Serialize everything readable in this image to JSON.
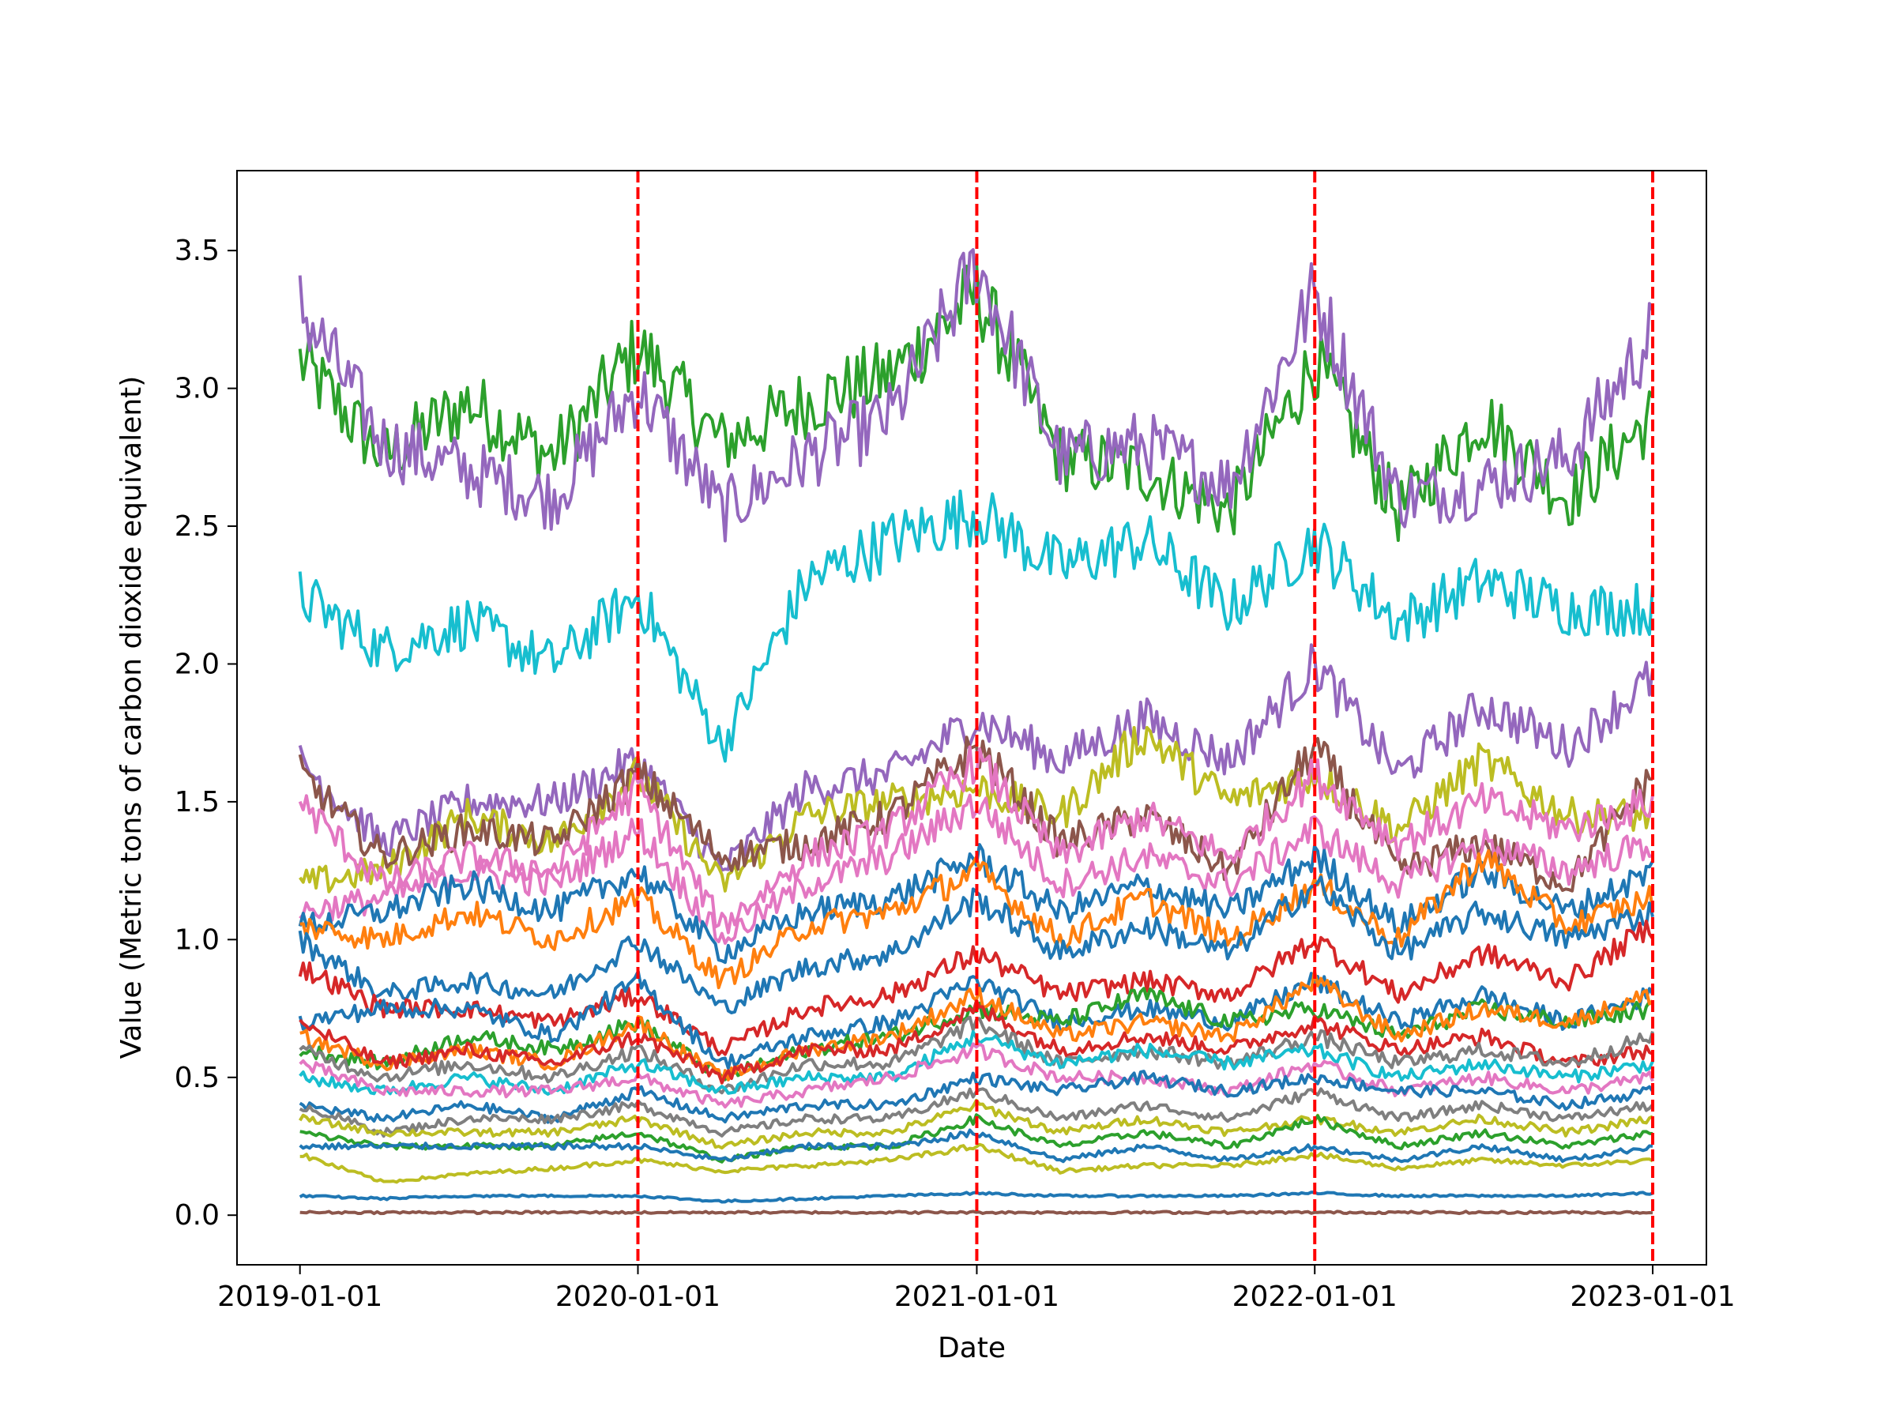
{
  "chart_data": {
    "type": "line",
    "title": "",
    "xlabel": "Date",
    "ylabel": "Value (Metric tons of carbon dioxide equivalent)",
    "x_ticks": [
      "2019-01-01",
      "2020-01-01",
      "2021-01-01",
      "2022-01-01",
      "2023-01-01"
    ],
    "y_ticks": [
      "0.0",
      "0.5",
      "1.0",
      "1.5",
      "2.0",
      "2.5",
      "3.0",
      "3.5"
    ],
    "xlim": [
      "2018-10-25",
      "2023-02-28"
    ],
    "ylim": [
      -0.18,
      3.79
    ],
    "grid": false,
    "legend": "none",
    "vertical_markers": {
      "dates": [
        "2020-01-01",
        "2021-01-01",
        "2022-01-01",
        "2023-01-01"
      ],
      "color": "#ff0000",
      "style": "dashed"
    },
    "x": [
      "2019-01-01",
      "2019-04-01",
      "2019-07-01",
      "2019-10-01",
      "2020-01-01",
      "2020-04-01",
      "2020-07-01",
      "2020-10-01",
      "2021-01-01",
      "2021-04-01",
      "2021-07-01",
      "2021-10-01",
      "2022-01-01",
      "2022-04-01",
      "2022-07-01",
      "2022-10-01",
      "2023-01-01"
    ],
    "series": [
      {
        "color": "#2ca02c",
        "values": [
          3.1,
          2.75,
          2.95,
          2.75,
          3.15,
          2.8,
          2.95,
          3.05,
          3.35,
          2.75,
          2.7,
          2.55,
          3.1,
          2.55,
          2.9,
          2.6,
          2.9
        ]
      },
      {
        "color": "#9467bd",
        "values": [
          3.3,
          2.8,
          2.7,
          2.6,
          3.0,
          2.55,
          2.75,
          2.9,
          3.45,
          2.75,
          2.8,
          2.65,
          3.35,
          2.6,
          2.65,
          2.75,
          3.2
        ]
      },
      {
        "color": "#17becf",
        "values": [
          2.25,
          2.05,
          2.15,
          2.0,
          2.25,
          1.7,
          2.3,
          2.45,
          2.55,
          2.35,
          2.45,
          2.2,
          2.45,
          2.15,
          2.3,
          2.2,
          2.2
        ]
      },
      {
        "color": "#9467bd",
        "values": [
          1.65,
          1.35,
          1.5,
          1.5,
          1.65,
          1.25,
          1.55,
          1.6,
          1.8,
          1.65,
          1.8,
          1.65,
          2.0,
          1.6,
          1.85,
          1.7,
          1.95
        ]
      },
      {
        "color": "#bcbd22",
        "values": [
          1.2,
          1.25,
          1.45,
          1.35,
          1.6,
          1.2,
          1.45,
          1.5,
          1.55,
          1.45,
          1.75,
          1.5,
          1.6,
          1.4,
          1.65,
          1.45,
          1.45
        ]
      },
      {
        "color": "#8c564b",
        "values": [
          1.6,
          1.3,
          1.4,
          1.35,
          1.6,
          1.3,
          1.35,
          1.45,
          1.7,
          1.35,
          1.45,
          1.25,
          1.7,
          1.25,
          1.35,
          1.2,
          1.6
        ]
      },
      {
        "color": "#e377c2",
        "values": [
          1.5,
          1.2,
          1.3,
          1.25,
          1.55,
          1.05,
          1.3,
          1.4,
          1.65,
          1.3,
          1.45,
          1.3,
          1.6,
          1.35,
          1.5,
          1.4,
          1.5
        ]
      },
      {
        "color": "#e377c2",
        "values": [
          1.1,
          1.15,
          1.25,
          1.2,
          1.4,
          1.0,
          1.2,
          1.3,
          1.5,
          1.2,
          1.3,
          1.2,
          1.4,
          1.2,
          1.35,
          1.25,
          1.35
        ]
      },
      {
        "color": "#1f77b4",
        "values": [
          1.05,
          1.1,
          1.2,
          1.1,
          1.25,
          0.95,
          1.1,
          1.15,
          1.3,
          1.1,
          1.2,
          1.1,
          1.3,
          1.05,
          1.25,
          1.1,
          1.25
        ]
      },
      {
        "color": "#ff7f0e",
        "values": [
          1.05,
          1.0,
          1.1,
          1.0,
          1.15,
          0.85,
          1.05,
          1.1,
          1.25,
          1.0,
          1.15,
          1.0,
          1.2,
          1.0,
          1.3,
          1.05,
          1.15
        ]
      },
      {
        "color": "#1f77b4",
        "values": [
          1.0,
          0.8,
          0.85,
          0.8,
          1.0,
          0.75,
          0.9,
          0.95,
          1.15,
          0.95,
          1.05,
          0.95,
          1.2,
          0.95,
          1.1,
          1.0,
          1.1
        ]
      },
      {
        "color": "#d62728",
        "values": [
          0.9,
          0.75,
          0.75,
          0.7,
          0.8,
          0.6,
          0.75,
          0.8,
          0.95,
          0.8,
          0.85,
          0.8,
          1.0,
          0.8,
          0.95,
          0.85,
          1.05
        ]
      },
      {
        "color": "#1f77b4",
        "values": [
          0.7,
          0.75,
          0.75,
          0.65,
          0.85,
          0.55,
          0.65,
          0.7,
          0.85,
          0.7,
          0.75,
          0.7,
          0.85,
          0.7,
          0.8,
          0.7,
          0.8
        ]
      },
      {
        "color": "#2ca02c",
        "values": [
          0.6,
          0.55,
          0.65,
          0.6,
          0.7,
          0.5,
          0.6,
          0.65,
          0.75,
          0.7,
          0.8,
          0.7,
          0.75,
          0.65,
          0.75,
          0.7,
          0.75
        ]
      },
      {
        "color": "#ff7f0e",
        "values": [
          0.65,
          0.55,
          0.6,
          0.55,
          0.7,
          0.5,
          0.6,
          0.65,
          0.8,
          0.65,
          0.7,
          0.65,
          0.85,
          0.65,
          0.75,
          0.7,
          0.8
        ]
      },
      {
        "color": "#d62728",
        "values": [
          0.7,
          0.55,
          0.6,
          0.55,
          0.65,
          0.5,
          0.6,
          0.6,
          0.75,
          0.6,
          0.65,
          0.6,
          0.7,
          0.6,
          0.65,
          0.55,
          0.6
        ]
      },
      {
        "color": "#7f7f7f",
        "values": [
          0.6,
          0.5,
          0.55,
          0.5,
          0.6,
          0.45,
          0.55,
          0.55,
          0.7,
          0.55,
          0.6,
          0.55,
          0.65,
          0.55,
          0.6,
          0.55,
          0.65
        ]
      },
      {
        "color": "#17becf",
        "values": [
          0.5,
          0.45,
          0.5,
          0.45,
          0.55,
          0.45,
          0.5,
          0.5,
          0.65,
          0.55,
          0.6,
          0.55,
          0.6,
          0.5,
          0.55,
          0.5,
          0.55
        ]
      },
      {
        "color": "#e377c2",
        "values": [
          0.55,
          0.45,
          0.45,
          0.45,
          0.5,
          0.4,
          0.45,
          0.5,
          0.6,
          0.5,
          0.5,
          0.45,
          0.55,
          0.45,
          0.5,
          0.45,
          0.5
        ]
      },
      {
        "color": "#1f77b4",
        "values": [
          0.4,
          0.35,
          0.4,
          0.35,
          0.45,
          0.35,
          0.4,
          0.4,
          0.5,
          0.45,
          0.5,
          0.45,
          0.5,
          0.45,
          0.45,
          0.4,
          0.45
        ]
      },
      {
        "color": "#7f7f7f",
        "values": [
          0.4,
          0.3,
          0.35,
          0.35,
          0.4,
          0.3,
          0.35,
          0.35,
          0.45,
          0.35,
          0.4,
          0.35,
          0.45,
          0.35,
          0.4,
          0.35,
          0.4
        ]
      },
      {
        "color": "#bcbd22",
        "values": [
          0.35,
          0.3,
          0.3,
          0.3,
          0.35,
          0.25,
          0.3,
          0.3,
          0.4,
          0.3,
          0.35,
          0.3,
          0.35,
          0.3,
          0.35,
          0.3,
          0.35
        ]
      },
      {
        "color": "#2ca02c",
        "values": [
          0.3,
          0.25,
          0.25,
          0.25,
          0.3,
          0.2,
          0.25,
          0.25,
          0.35,
          0.25,
          0.3,
          0.25,
          0.35,
          0.25,
          0.3,
          0.25,
          0.3
        ]
      },
      {
        "color": "#1f77b4",
        "values": [
          0.25,
          0.25,
          0.25,
          0.25,
          0.25,
          0.2,
          0.25,
          0.25,
          0.3,
          0.2,
          0.25,
          0.2,
          0.25,
          0.2,
          0.25,
          0.2,
          0.25
        ]
      },
      {
        "color": "#bcbd22",
        "values": [
          0.22,
          0.12,
          0.15,
          0.17,
          0.2,
          0.16,
          0.18,
          0.2,
          0.25,
          0.16,
          0.18,
          0.18,
          0.22,
          0.17,
          0.2,
          0.18,
          0.2
        ]
      },
      {
        "color": "#1f77b4",
        "values": [
          0.07,
          0.06,
          0.07,
          0.07,
          0.07,
          0.05,
          0.06,
          0.07,
          0.08,
          0.07,
          0.07,
          0.07,
          0.08,
          0.07,
          0.07,
          0.07,
          0.08
        ]
      },
      {
        "color": "#8c564b",
        "values": [
          0.01,
          0.01,
          0.01,
          0.01,
          0.01,
          0.01,
          0.01,
          0.01,
          0.01,
          0.01,
          0.01,
          0.01,
          0.01,
          0.01,
          0.01,
          0.01,
          0.01
        ]
      }
    ]
  }
}
